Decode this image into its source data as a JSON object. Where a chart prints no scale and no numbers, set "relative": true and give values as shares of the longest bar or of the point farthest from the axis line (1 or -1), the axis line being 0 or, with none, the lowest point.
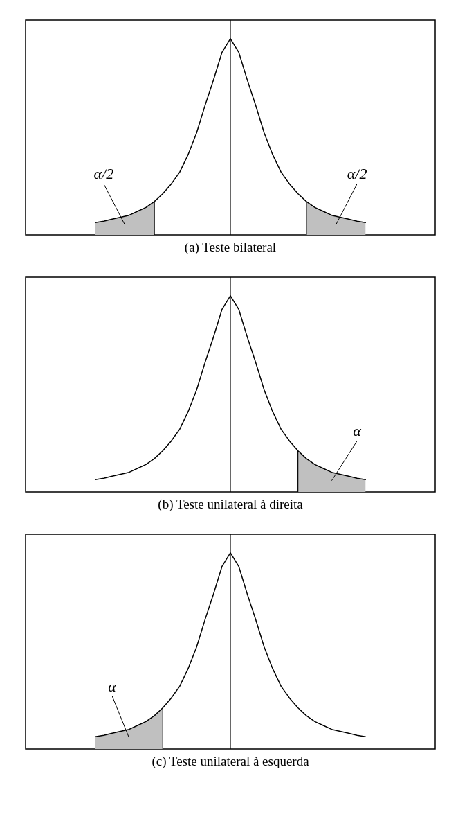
{
  "chart_data": [
    {
      "type": "line",
      "title": "(a) Teste bilateral",
      "relative": true,
      "categories": [
        null,
        null,
        null,
        null,
        null,
        null,
        null,
        null,
        null,
        null,
        null,
        null,
        null,
        null,
        null,
        null,
        null,
        null,
        null,
        null,
        null,
        null,
        null,
        null,
        null,
        null,
        null,
        null,
        null,
        null,
        null,
        null,
        null
      ],
      "ref_lines": [
        {
          "axis": "x"
        }
      ],
      "series": [
        {
          "color": "#000000",
          "values": [
            0.063,
            0.07,
            0.08,
            0.09,
            0.1,
            0.12,
            0.14,
            0.17,
            0.21,
            0.26,
            0.32,
            0.41,
            0.52,
            0.66,
            0.79,
            0.93,
            1,
            0.93,
            0.79,
            0.66,
            0.52,
            0.41,
            0.32,
            0.26,
            0.21,
            0.17,
            0.14,
            0.12,
            0.1,
            0.09,
            0.08,
            0.07,
            0.063
          ]
        },
        {
          "type": "area",
          "color": "#c0c0c0",
          "values": [
            0.063,
            0.07,
            0.08,
            0.09,
            0.1,
            0.12,
            0.14,
            0.17,
            null,
            null,
            null,
            null,
            null,
            null,
            null,
            null,
            null,
            null,
            null,
            null,
            null,
            null,
            null,
            null,
            null,
            null,
            null,
            null,
            null,
            null,
            null,
            null,
            null
          ]
        },
        {
          "type": "area",
          "color": "#c0c0c0",
          "values": [
            null,
            null,
            null,
            null,
            null,
            null,
            null,
            null,
            null,
            null,
            null,
            null,
            null,
            null,
            null,
            null,
            null,
            null,
            null,
            null,
            null,
            null,
            null,
            null,
            null,
            0.17,
            0.14,
            0.12,
            0.1,
            0.09,
            0.08,
            0.07,
            0.063
          ]
        }
      ],
      "annotations": [
        "α/2",
        "α/2"
      ]
    },
    {
      "type": "line",
      "title": "(b) Teste unilateral à direita",
      "relative": true,
      "categories": [
        null,
        null,
        null,
        null,
        null,
        null,
        null,
        null,
        null,
        null,
        null,
        null,
        null,
        null,
        null,
        null,
        null,
        null,
        null,
        null,
        null,
        null,
        null,
        null,
        null,
        null,
        null,
        null,
        null,
        null,
        null,
        null,
        null
      ],
      "ref_lines": [
        {
          "axis": "x"
        }
      ],
      "series": [
        {
          "color": "#000000",
          "values": [
            0.063,
            0.07,
            0.08,
            0.09,
            0.1,
            0.12,
            0.14,
            0.17,
            0.21,
            0.26,
            0.32,
            0.41,
            0.52,
            0.66,
            0.79,
            0.93,
            1,
            0.93,
            0.79,
            0.66,
            0.52,
            0.41,
            0.32,
            0.26,
            0.21,
            0.17,
            0.14,
            0.12,
            0.1,
            0.09,
            0.08,
            0.07,
            0.063
          ]
        },
        {
          "type": "area",
          "color": "#c0c0c0",
          "values": [
            null,
            null,
            null,
            null,
            null,
            null,
            null,
            null,
            null,
            null,
            null,
            null,
            null,
            null,
            null,
            null,
            null,
            null,
            null,
            null,
            null,
            null,
            null,
            null,
            0.21,
            0.17,
            0.14,
            0.12,
            0.1,
            0.09,
            0.08,
            0.07,
            0.063
          ]
        }
      ],
      "annotations": [
        "α"
      ]
    },
    {
      "type": "line",
      "title": "(c) Teste unilateral à esquerda",
      "relative": true,
      "categories": [
        null,
        null,
        null,
        null,
        null,
        null,
        null,
        null,
        null,
        null,
        null,
        null,
        null,
        null,
        null,
        null,
        null,
        null,
        null,
        null,
        null,
        null,
        null,
        null,
        null,
        null,
        null,
        null,
        null,
        null,
        null,
        null,
        null
      ],
      "ref_lines": [
        {
          "axis": "x"
        }
      ],
      "series": [
        {
          "color": "#000000",
          "values": [
            0.063,
            0.07,
            0.08,
            0.09,
            0.1,
            0.12,
            0.14,
            0.17,
            0.21,
            0.26,
            0.32,
            0.41,
            0.52,
            0.66,
            0.79,
            0.93,
            1,
            0.93,
            0.79,
            0.66,
            0.52,
            0.41,
            0.32,
            0.26,
            0.21,
            0.17,
            0.14,
            0.12,
            0.1,
            0.09,
            0.08,
            0.07,
            0.063
          ]
        },
        {
          "type": "area",
          "color": "#c0c0c0",
          "values": [
            0.063,
            0.07,
            0.08,
            0.09,
            0.1,
            0.12,
            0.14,
            0.17,
            0.21,
            null,
            null,
            null,
            null,
            null,
            null,
            null,
            null,
            null,
            null,
            null,
            null,
            null,
            null,
            null,
            null,
            null,
            null,
            null,
            null,
            null,
            null,
            null,
            null
          ]
        }
      ],
      "annotations": [
        "α"
      ]
    }
  ]
}
